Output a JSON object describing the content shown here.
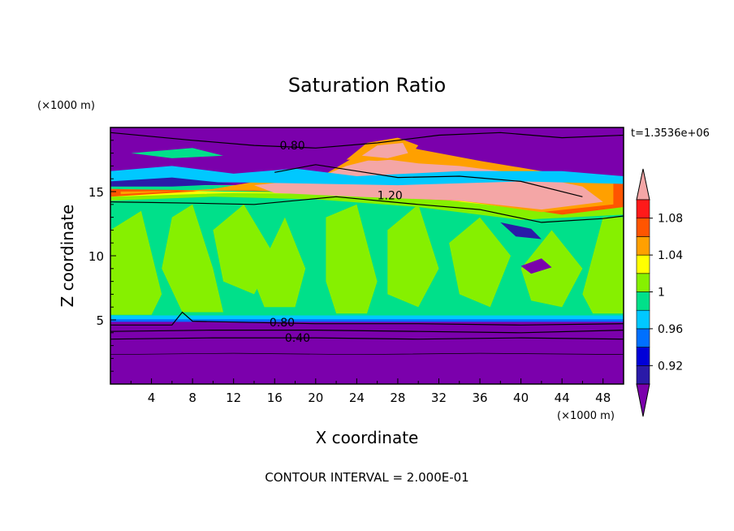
{
  "chart_data": {
    "type": "heatmap",
    "title": "Saturation Ratio",
    "xlabel": "X coordinate",
    "ylabel": "Z coordinate",
    "x_unit": "(×1000 m)",
    "y_unit": "(×1000 m)",
    "time_label": "t=1.3536e+06",
    "footer": "CONTOUR INTERVAL = 2.000E-01",
    "xlim": [
      0,
      50
    ],
    "ylim": [
      0,
      20
    ],
    "x_ticks": [
      4,
      8,
      12,
      16,
      20,
      24,
      28,
      32,
      36,
      40,
      44,
      48
    ],
    "y_ticks": [
      5,
      10,
      15
    ],
    "contour_labels": [
      {
        "text": "0.80",
        "x": 16.5,
        "y": 18.6
      },
      {
        "text": "1.20",
        "x": 26.0,
        "y": 14.7
      },
      {
        "text": "0.80",
        "x": 15.5,
        "y": 4.8
      },
      {
        "text": "0.40",
        "x": 17.0,
        "y": 3.6
      }
    ],
    "colorbar": {
      "labels": [
        "0.92",
        "0.96",
        "1",
        "1.04",
        "1.08"
      ],
      "colors": [
        "#7b00ac",
        "#2a1aa8",
        "#0000d8",
        "#0070ff",
        "#00c8ff",
        "#00e08a",
        "#86f000",
        "#ffff00",
        "#ffa000",
        "#ff5500",
        "#ff1a1a",
        "#f4a6a6"
      ]
    },
    "zones": {
      "dry_upper": "#7b00ac",
      "humid_mid": "#00e08a",
      "near_sat": "#86f000",
      "supersat": "#f4a6a6",
      "dry_lower": "#7b00ac"
    }
  }
}
